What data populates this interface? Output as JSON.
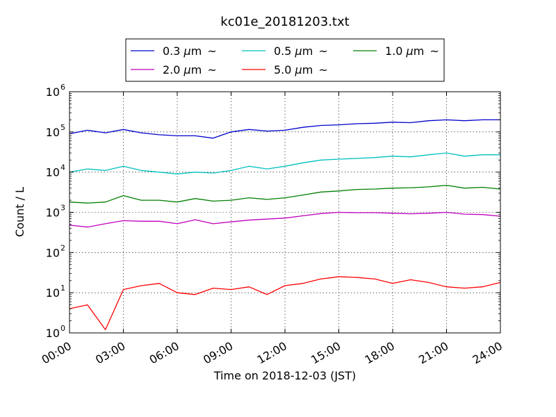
{
  "chart_data": {
    "type": "line",
    "title": "kc01e_20181203.txt",
    "xlabel": "Time on 2018-12-03 (JST)",
    "ylabel": "Count / L",
    "yscale": "log",
    "ylim": [
      1,
      1000000
    ],
    "xlim": [
      "00:00",
      "24:00"
    ],
    "x_tick_labels": [
      "00:00",
      "03:00",
      "06:00",
      "09:00",
      "12:00",
      "15:00",
      "18:00",
      "21:00",
      "24:00"
    ],
    "y_tick_labels": [
      {
        "base": "10",
        "exp": "0"
      },
      {
        "base": "10",
        "exp": "1"
      },
      {
        "base": "10",
        "exp": "2"
      },
      {
        "base": "10",
        "exp": "3"
      },
      {
        "base": "10",
        "exp": "4"
      },
      {
        "base": "10",
        "exp": "5"
      },
      {
        "base": "10",
        "exp": "6"
      }
    ],
    "grid": true,
    "legend": {
      "placement": "top-center",
      "mu": "μ",
      "unit": "m",
      "tail": "~"
    },
    "x": [
      "00:00",
      "01:00",
      "02:00",
      "03:00",
      "04:00",
      "05:00",
      "06:00",
      "07:00",
      "08:00",
      "09:00",
      "10:00",
      "11:00",
      "12:00",
      "13:00",
      "14:00",
      "15:00",
      "16:00",
      "17:00",
      "18:00",
      "19:00",
      "20:00",
      "21:00",
      "22:00",
      "23:00",
      "24:00"
    ],
    "series": [
      {
        "name": "0.3",
        "color": "#0000cc",
        "values": [
          90000,
          110000,
          95000,
          115000,
          95000,
          85000,
          80000,
          80000,
          70000,
          100000,
          115000,
          105000,
          110000,
          130000,
          145000,
          150000,
          160000,
          165000,
          175000,
          170000,
          190000,
          200000,
          190000,
          200000,
          200000
        ]
      },
      {
        "name": "0.5",
        "color": "#00bfbf",
        "values": [
          10000,
          12000,
          11000,
          14000,
          11000,
          10000,
          9000,
          10000,
          9500,
          11000,
          14000,
          12000,
          14000,
          17000,
          20000,
          21000,
          22000,
          23000,
          25000,
          24000,
          27000,
          30000,
          25000,
          27000,
          27000
        ]
      },
      {
        "name": "1.0",
        "color": "#007f00",
        "values": [
          1800,
          1700,
          1800,
          2600,
          2000,
          2000,
          1800,
          2200,
          1900,
          2000,
          2300,
          2100,
          2300,
          2700,
          3200,
          3400,
          3700,
          3800,
          4000,
          4100,
          4300,
          4700,
          4000,
          4200,
          3800
        ]
      },
      {
        "name": "2.0",
        "color": "#bf00bf",
        "values": [
          480,
          430,
          520,
          620,
          600,
          600,
          520,
          650,
          520,
          580,
          640,
          680,
          720,
          820,
          930,
          1000,
          980,
          980,
          950,
          920,
          950,
          1000,
          900,
          880,
          800
        ]
      },
      {
        "name": "5.0",
        "color": "#ff0000",
        "values": [
          4,
          5,
          1.2,
          12,
          15,
          17,
          10,
          9,
          13,
          12,
          14,
          9,
          15,
          17,
          22,
          25,
          24,
          22,
          17,
          21,
          18,
          14,
          13,
          14,
          18
        ]
      }
    ]
  }
}
